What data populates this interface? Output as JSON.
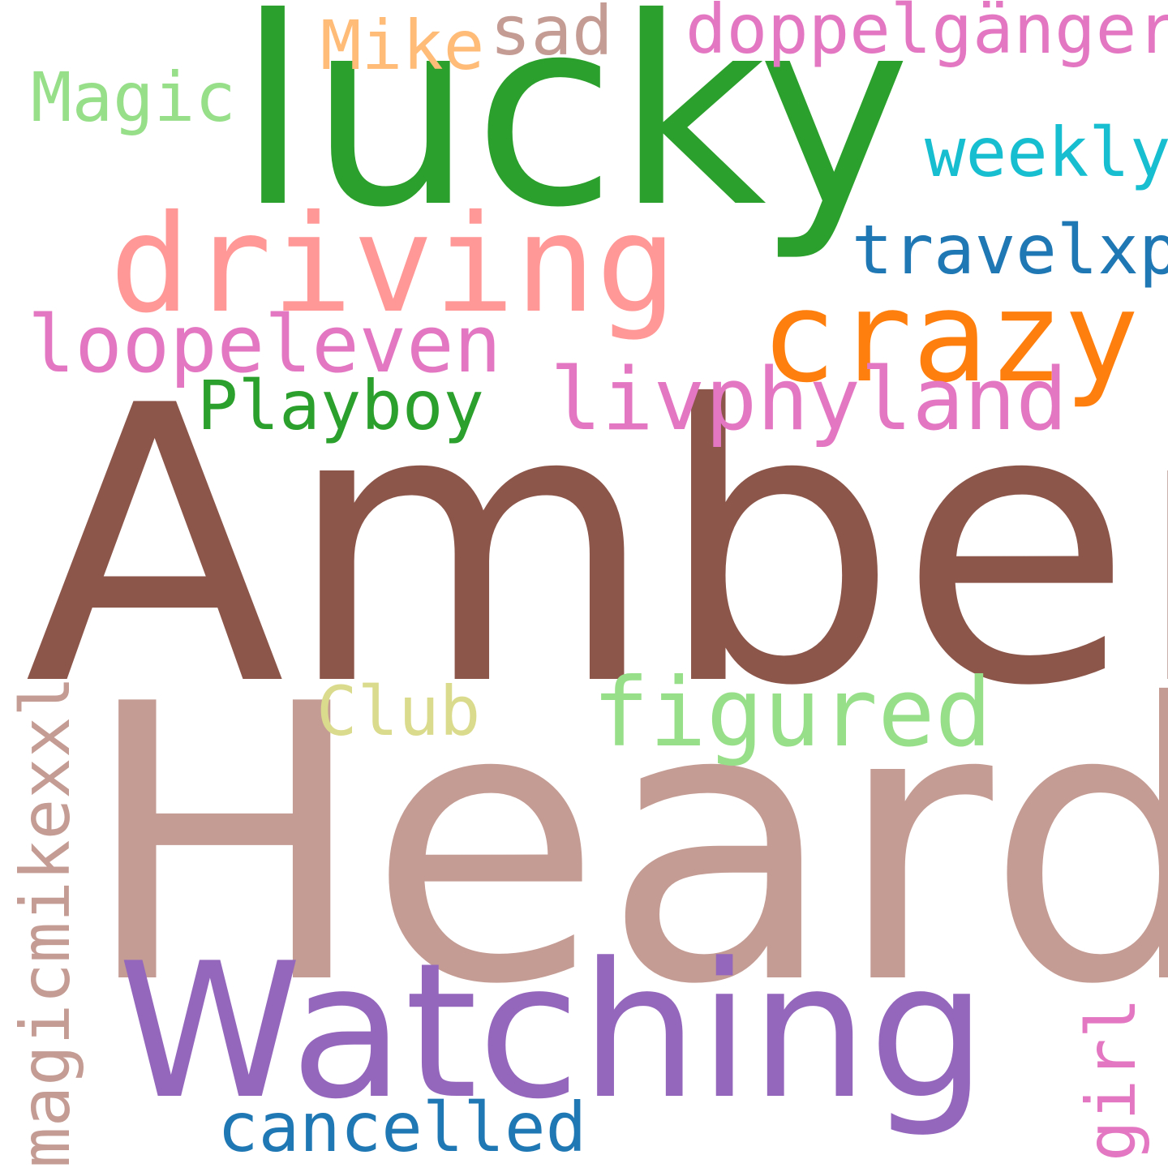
{
  "words": {
    "amber": {
      "text": "Amber",
      "color": "#8c564b"
    },
    "heard": {
      "text": "Heard",
      "color": "#c49c94"
    },
    "lucky": {
      "text": "lucky",
      "color": "#2ca02c"
    },
    "watching": {
      "text": "Watching",
      "color": "#9467bd"
    },
    "driving": {
      "text": "driving",
      "color": "#ff9896"
    },
    "crazy": {
      "text": "crazy",
      "color": "#ff7f0e"
    },
    "loopeleven": {
      "text": "loopeleven",
      "color": "#e377c2"
    },
    "livphyland": {
      "text": "livphyland",
      "color": "#e377c2"
    },
    "playboy": {
      "text": "Playboy",
      "color": "#2ca02c"
    },
    "figured": {
      "text": "figured",
      "color": "#98df8a"
    },
    "club": {
      "text": "Club",
      "color": "#dbdb8d"
    },
    "magicmikexxl": {
      "text": "magicmikexxl",
      "color": "#c49c94"
    },
    "cancelled": {
      "text": "cancelled",
      "color": "#1f77b4"
    },
    "girl": {
      "text": "girl",
      "color": "#e377c2"
    },
    "travelxp": {
      "text": "travelxp",
      "color": "#1f77b4"
    },
    "weekly": {
      "text": "weekly",
      "color": "#17becf"
    },
    "doppelganger": {
      "text": "doppelgänger",
      "color": "#e377c2"
    },
    "sad": {
      "text": "sad",
      "color": "#c49c94"
    },
    "mike": {
      "text": "Mike",
      "color": "#ffbb78"
    },
    "magic": {
      "text": "Magic",
      "color": "#98df8a"
    }
  }
}
